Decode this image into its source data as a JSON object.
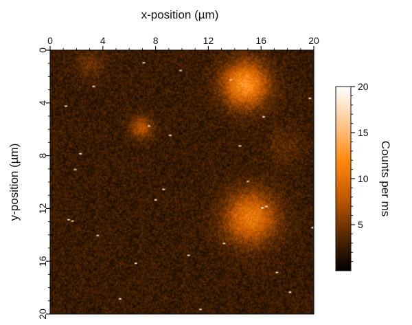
{
  "chart_data": {
    "type": "heatmap",
    "title": "",
    "xlabel": "x-position (µm)",
    "ylabel": "y-position (µm)",
    "xlim": [
      0,
      20
    ],
    "ylim": [
      0,
      20
    ],
    "y_axis_inverted": true,
    "x_axis_position": "top",
    "x_ticks": [
      0,
      4,
      8,
      12,
      16,
      20
    ],
    "y_ticks": [
      0,
      4,
      8,
      12,
      16,
      20
    ],
    "x_tick_labels": [
      "0",
      "4",
      "8",
      "12",
      "16",
      "20"
    ],
    "y_tick_labels": [
      "0",
      "4",
      "8",
      "12",
      "16",
      "20"
    ],
    "grid": false,
    "colorbar": {
      "label": "Counts per ms",
      "range": [
        0,
        20
      ],
      "ticks": [
        5,
        10,
        15,
        20
      ],
      "tick_labels": [
        "5",
        "10",
        "15",
        "20"
      ],
      "colormap": [
        "#000000",
        "#5a2a00",
        "#c45a00",
        "#ff8a10",
        "#ffc890",
        "#ffffff"
      ],
      "position": "right"
    },
    "background_level": 2.5,
    "bright_regions": [
      {
        "x": 14.8,
        "y": 2.6,
        "sigma": 1.2,
        "peak": 10
      },
      {
        "x": 15.2,
        "y": 12.7,
        "sigma": 1.4,
        "peak": 8
      },
      {
        "x": 6.9,
        "y": 5.9,
        "sigma": 0.6,
        "peak": 5
      },
      {
        "x": 3.1,
        "y": 1.0,
        "sigma": 0.8,
        "peak": 2
      },
      {
        "x": 17.8,
        "y": 7.2,
        "sigma": 1.0,
        "peak": 1.5
      }
    ],
    "bright_pixels": [
      {
        "x": 7.1,
        "y": 0.9,
        "value": 18
      },
      {
        "x": 9.8,
        "y": 1.5,
        "value": 18
      },
      {
        "x": 13.7,
        "y": 2.3,
        "value": 16
      },
      {
        "x": 3.3,
        "y": 2.8,
        "value": 18
      },
      {
        "x": 19.6,
        "y": 3.6,
        "value": 18
      },
      {
        "x": 1.1,
        "y": 4.3,
        "value": 18
      },
      {
        "x": 16.1,
        "y": 5.0,
        "value": 18
      },
      {
        "x": 7.4,
        "y": 5.7,
        "value": 18
      },
      {
        "x": 9.1,
        "y": 6.4,
        "value": 18
      },
      {
        "x": 14.3,
        "y": 7.2,
        "value": 18
      },
      {
        "x": 2.2,
        "y": 7.8,
        "value": 18
      },
      {
        "x": 1.9,
        "y": 9.1,
        "value": 16
      },
      {
        "x": 14.9,
        "y": 9.9,
        "value": 16
      },
      {
        "x": 8.6,
        "y": 10.6,
        "value": 18
      },
      {
        "x": 7.9,
        "y": 11.3,
        "value": 18
      },
      {
        "x": 16.0,
        "y": 11.9,
        "value": 20
      },
      {
        "x": 16.4,
        "y": 11.8,
        "value": 18
      },
      {
        "x": 1.3,
        "y": 12.8,
        "value": 18
      },
      {
        "x": 1.6,
        "y": 12.9,
        "value": 16
      },
      {
        "x": 19.9,
        "y": 13.4,
        "value": 18
      },
      {
        "x": 3.5,
        "y": 14.0,
        "value": 18
      },
      {
        "x": 13.1,
        "y": 14.7,
        "value": 18
      },
      {
        "x": 10.4,
        "y": 15.5,
        "value": 18
      },
      {
        "x": 6.4,
        "y": 16.2,
        "value": 18
      },
      {
        "x": 17.1,
        "y": 16.9,
        "value": 18
      },
      {
        "x": 18.2,
        "y": 18.3,
        "value": 18
      },
      {
        "x": 5.3,
        "y": 18.9,
        "value": 18
      },
      {
        "x": 11.3,
        "y": 19.6,
        "value": 18
      }
    ]
  }
}
